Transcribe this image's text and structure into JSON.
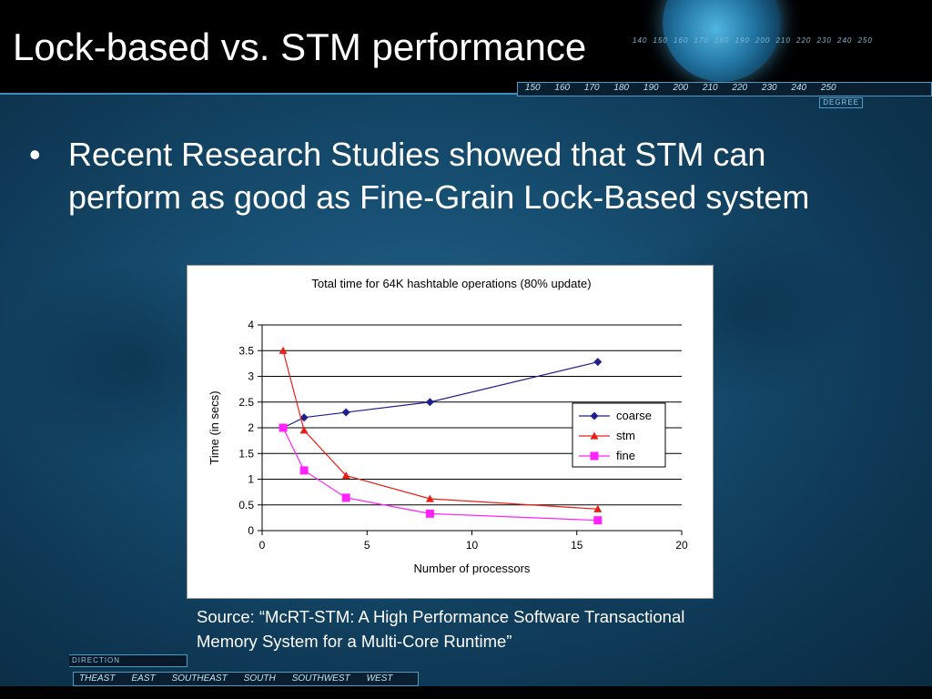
{
  "slide": {
    "title": "Lock-based vs. STM performance",
    "bullet_symbol": "•",
    "bullet": "Recent Research Studies showed that STM can perform as good as Fine-Grain Lock-Based system",
    "source": "Source: “McRT-STM: A High Performance Software Transactional Memory System for a Multi-Core Runtime”"
  },
  "decor": {
    "ruler_top": [
      "140",
      "150",
      "160",
      "170",
      "180",
      "190",
      "200",
      "210",
      "220",
      "230",
      "240",
      "250"
    ],
    "degree_ticks": [
      "150",
      "160",
      "170",
      "180",
      "190",
      "200",
      "210",
      "220",
      "230",
      "240",
      "250"
    ],
    "degree_label": "DEGREE",
    "direction_label": "DIRECTION",
    "directions": [
      "THEAST",
      "EAST",
      "SOUTHEAST",
      "SOUTH",
      "SOUTHWEST",
      "WEST"
    ]
  },
  "chart_data": {
    "type": "line",
    "title": "Total time for 64K hashtable operations (80% update)",
    "xlabel": "Number of processors",
    "ylabel": "Time (in secs)",
    "xlim": [
      0,
      20
    ],
    "ylim": [
      0,
      4
    ],
    "xticks": [
      0,
      5,
      10,
      15,
      20
    ],
    "yticks": [
      0,
      0.5,
      1,
      1.5,
      2,
      2.5,
      3,
      3.5,
      4
    ],
    "grid": "horizontal",
    "legend_position": "right",
    "series": [
      {
        "name": "coarse",
        "color": "#1f1f8c",
        "marker": "diamond",
        "x": [
          1,
          2,
          4,
          8,
          16
        ],
        "y": [
          2.0,
          2.2,
          2.3,
          2.5,
          3.28
        ]
      },
      {
        "name": "stm",
        "color": "#e8201a",
        "marker": "triangle",
        "x": [
          1,
          2,
          4,
          8,
          16
        ],
        "y": [
          3.5,
          1.95,
          1.07,
          0.62,
          0.42
        ]
      },
      {
        "name": "fine",
        "color": "#ff22ff",
        "marker": "square",
        "x": [
          1,
          2,
          4,
          8,
          16
        ],
        "y": [
          2.0,
          1.17,
          0.64,
          0.33,
          0.2
        ]
      }
    ]
  }
}
